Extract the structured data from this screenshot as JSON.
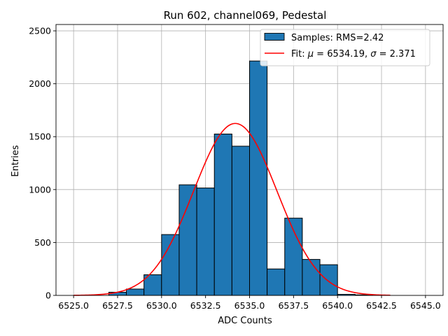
{
  "chart_data": {
    "type": "histogram",
    "title": "Run 602, channel069, Pedestal",
    "xlabel": "ADC Counts",
    "ylabel": "Entries",
    "xlim": [
      6524.0,
      6546.0
    ],
    "ylim": [
      0,
      2560
    ],
    "x_ticks": [
      6525.0,
      6527.5,
      6530.0,
      6532.5,
      6535.0,
      6537.5,
      6540.0,
      6542.5,
      6545.0
    ],
    "x_tick_labels": [
      "6525.0",
      "6527.5",
      "6530.0",
      "6532.5",
      "6535.0",
      "6537.5",
      "6540.0",
      "6542.5",
      "6545.0"
    ],
    "y_ticks": [
      0,
      500,
      1000,
      1500,
      2000,
      2500
    ],
    "y_tick_labels": [
      "0",
      "500",
      "1000",
      "1500",
      "2000",
      "2500"
    ],
    "grid": true,
    "legend_position": "top-right",
    "bar_color": "#1f77b4",
    "fit_color": "#ff0000",
    "bins": [
      {
        "x0": 6527,
        "x1": 6528,
        "count": 30
      },
      {
        "x0": 6528,
        "x1": 6529,
        "count": 60
      },
      {
        "x0": 6529,
        "x1": 6530,
        "count": 195
      },
      {
        "x0": 6530,
        "x1": 6531,
        "count": 575
      },
      {
        "x0": 6531,
        "x1": 6532,
        "count": 1045
      },
      {
        "x0": 6532,
        "x1": 6533,
        "count": 1015
      },
      {
        "x0": 6533,
        "x1": 6534,
        "count": 1525
      },
      {
        "x0": 6534,
        "x1": 6535,
        "count": 1410
      },
      {
        "x0": 6535,
        "x1": 6536,
        "count": 2215
      },
      {
        "x0": 6536,
        "x1": 6537,
        "count": 250
      },
      {
        "x0": 6537,
        "x1": 6538,
        "count": 730
      },
      {
        "x0": 6538,
        "x1": 6539,
        "count": 340
      },
      {
        "x0": 6539,
        "x1": 6540,
        "count": 290
      },
      {
        "x0": 6540,
        "x1": 6541,
        "count": 10
      },
      {
        "x0": 6541,
        "x1": 6542,
        "count": 5
      }
    ],
    "fit": {
      "mu": 6534.19,
      "sigma": 2.371,
      "amplitude": 1625,
      "x_range": [
        6525.0,
        6543.0
      ]
    },
    "legend": {
      "samples_label": "Samples: RMS=2.42",
      "fit_prefix": "Fit: ",
      "fit_mu_symbol": "μ",
      "fit_mu_text": " = 6534.19, ",
      "fit_sigma_symbol": "σ",
      "fit_sigma_text": " = 2.371"
    }
  }
}
